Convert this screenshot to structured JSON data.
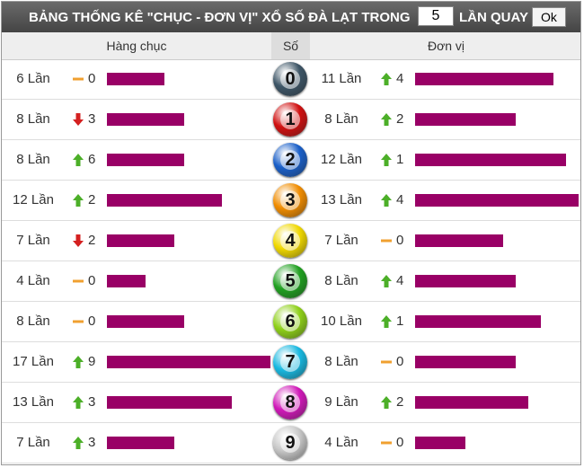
{
  "header": {
    "title": "BẢNG THỐNG KÊ \"CHỤC - ĐƠN VỊ\" XỔ SỐ ĐÀ LẠT TRONG",
    "draws": 5,
    "suffix": "LẦN QUAY",
    "button": "Ok"
  },
  "columns": [
    "Hàng chục",
    "Số",
    "Đơn vị"
  ],
  "bar_color": "#990066",
  "rows": [
    {
      "digit": 0,
      "ball_color": "#3d5566",
      "tens": {
        "label": "6 Lần",
        "value": 6,
        "trend": "flat",
        "change": 0
      },
      "units": {
        "label": "11 Lần",
        "value": 11,
        "trend": "up",
        "change": 4
      }
    },
    {
      "digit": 1,
      "ball_color": "#d01010",
      "tens": {
        "label": "8 Lần",
        "value": 8,
        "trend": "down",
        "change": 3
      },
      "units": {
        "label": "8 Lần",
        "value": 8,
        "trend": "up",
        "change": 2
      }
    },
    {
      "digit": 2,
      "ball_color": "#1a5fc8",
      "tens": {
        "label": "8 Lần",
        "value": 8,
        "trend": "up",
        "change": 6
      },
      "units": {
        "label": "12 Lần",
        "value": 12,
        "trend": "up",
        "change": 1
      }
    },
    {
      "digit": 3,
      "ball_color": "#f08c00",
      "tens": {
        "label": "12 Lần",
        "value": 12,
        "trend": "up",
        "change": 2
      },
      "units": {
        "label": "13 Lần",
        "value": 13,
        "trend": "up",
        "change": 4
      }
    },
    {
      "digit": 4,
      "ball_color": "#f0d800",
      "tens": {
        "label": "7 Lần",
        "value": 7,
        "trend": "down",
        "change": 2
      },
      "units": {
        "label": "7 Lần",
        "value": 7,
        "trend": "flat",
        "change": 0
      }
    },
    {
      "digit": 5,
      "ball_color": "#20a020",
      "tens": {
        "label": "4 Lần",
        "value": 4,
        "trend": "flat",
        "change": 0
      },
      "units": {
        "label": "8 Lần",
        "value": 8,
        "trend": "up",
        "change": 4
      }
    },
    {
      "digit": 6,
      "ball_color": "#8ed018",
      "tens": {
        "label": "8 Lần",
        "value": 8,
        "trend": "flat",
        "change": 0
      },
      "units": {
        "label": "10 Lần",
        "value": 10,
        "trend": "up",
        "change": 1
      }
    },
    {
      "digit": 7,
      "ball_color": "#18b8e0",
      "tens": {
        "label": "17 Lần",
        "value": 17,
        "trend": "up",
        "change": 9
      },
      "units": {
        "label": "8 Lần",
        "value": 8,
        "trend": "flat",
        "change": 0
      }
    },
    {
      "digit": 8,
      "ball_color": "#d018b8",
      "tens": {
        "label": "13 Lần",
        "value": 13,
        "trend": "up",
        "change": 3
      },
      "units": {
        "label": "9 Lần",
        "value": 9,
        "trend": "up",
        "change": 2
      }
    },
    {
      "digit": 9,
      "ball_color": "#c8c8c8",
      "tens": {
        "label": "7 Lần",
        "value": 7,
        "trend": "up",
        "change": 3
      },
      "units": {
        "label": "4 Lần",
        "value": 4,
        "trend": "flat",
        "change": 0
      }
    }
  ]
}
